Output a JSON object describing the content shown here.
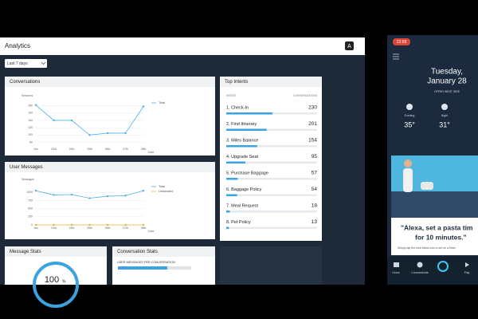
{
  "header": {
    "title": "Analytics",
    "avatar": "A"
  },
  "filter": "Last 7 days",
  "conversations": {
    "title": "Conversations",
    "y_label": "Sessions",
    "x_label": "Date",
    "categories": [
      "Jan",
      "23rd",
      "24th",
      "25th",
      "26th",
      "27th",
      "28th"
    ],
    "ylim": [
      70,
      190
    ],
    "yticks": [
      80,
      100,
      120,
      140,
      160,
      180
    ],
    "series": [
      {
        "name": "Total",
        "color": "#4fb0e3",
        "values": [
          182,
          140,
          140,
          100,
          105,
          105,
          178
        ]
      }
    ]
  },
  "user_messages": {
    "title": "User Messages",
    "y_label": "Messages",
    "x_label": "Date",
    "categories": [
      "Jan",
      "23rd",
      "24th",
      "25th",
      "26th",
      "27th",
      "28th"
    ],
    "ylim": [
      0,
      1200
    ],
    "yticks": [
      0,
      250,
      500,
      750,
      1000
    ],
    "series": [
      {
        "name": "Total",
        "color": "#4fb0e3",
        "values": [
          1050,
          920,
          930,
          820,
          880,
          900,
          1050
        ]
      },
      {
        "name": "Unhandled",
        "color": "#e8b23a",
        "values": [
          0,
          0,
          0,
          0,
          0,
          0,
          0
        ]
      }
    ]
  },
  "top_intents": {
    "title": "Top Intents",
    "columns": [
      "INTENT",
      "CONVERSATIONS"
    ],
    "rows": [
      {
        "label": "1. Check-In",
        "value": 230
      },
      {
        "label": "2. Find Itinerary",
        "value": 201
      },
      {
        "label": "3. Miles Balance",
        "value": 154
      },
      {
        "label": "4. Upgrade Seat",
        "value": 95
      },
      {
        "label": "5. Purchase Baggage",
        "value": 57
      },
      {
        "label": "6. Baggage Policy",
        "value": 54
      },
      {
        "label": "7. Meal Request",
        "value": 18
      },
      {
        "label": "8. Pet Policy",
        "value": 13
      }
    ]
  },
  "message_stats": {
    "title": "Message Stats",
    "value": "100",
    "unit": "%"
  },
  "conversation_stats": {
    "title": "Conversation Stats",
    "subtitle": "USER MESSAGES PER CONVERSATION"
  },
  "phone": {
    "time": "22:58",
    "day": "Tuesday,",
    "date": "January 28",
    "location": "OFFER WEST SIDE",
    "weather": [
      {
        "label": "Evening",
        "temp": "35°"
      },
      {
        "label": "Night",
        "temp": "31°"
      }
    ],
    "card_line1": "\"Alexa, set a pasta tim",
    "card_line2": "for 10 minutes.\"",
    "card_hint": "Simply tap the blue Alexa icon to set on a timer.",
    "nav": [
      "Home",
      "Communicate",
      "Play"
    ]
  }
}
